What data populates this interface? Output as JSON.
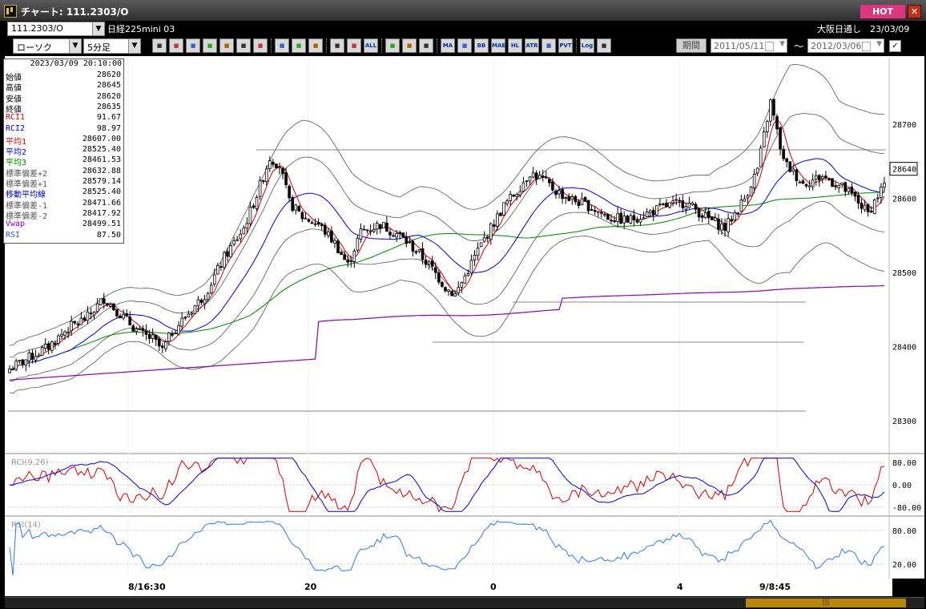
{
  "window": {
    "title": "チャート: 111.2303/O",
    "hot": "HOT",
    "close": "✕"
  },
  "toolbar": {
    "symbol": "111.2303/O",
    "instrument": "日経225mini 03",
    "market_info": "大阪日通し　23/03/09",
    "chart_type": "ローソク",
    "interval": "5分足",
    "period_button": "期間",
    "date_from": "2011/05/11",
    "date_to": "2012/03/06",
    "tilde": "～",
    "icons": [
      "zoom-icon",
      "bar-icon",
      "down-arrow-icon",
      "color-icon",
      "grid-icon",
      "updown-icon",
      "warning-icon",
      "pen-icon",
      "cursor-icon",
      "undo-icon",
      "cross-icon",
      "cross2-icon",
      "all-icon",
      "gear-icon",
      "brush-icon",
      "palette-icon",
      "ma-icon",
      "ma2-icon",
      "bb-icon",
      "mae-icon",
      "hl-icon",
      "atr-icon",
      "bs-icon",
      "pvt-icon",
      "log-icon",
      "split-icon"
    ],
    "icon_labels": {
      "all": "ALL",
      "ma": "MA",
      "bb": "BB",
      "mae": "MAE",
      "hl": "HL",
      "atr": "ATR",
      "pvt": "PVT",
      "log": "Log"
    }
  },
  "info_panel": {
    "timestamp": "2023/03/09  20:10:00",
    "rows": [
      {
        "label": "始値",
        "value": "28620",
        "color": "#000000"
      },
      {
        "label": "高値",
        "value": "28645",
        "color": "#000000"
      },
      {
        "label": "安値",
        "value": "28620",
        "color": "#000000"
      },
      {
        "label": "終値",
        "value": "28635",
        "color": "#000000"
      },
      {
        "label": "RCI1",
        "value": "91.67",
        "color": "#cc0000"
      },
      {
        "label": "RCI2",
        "value": "98.97",
        "color": "#0000cc"
      },
      {
        "label": "平均1",
        "value": "28607.00",
        "color": "#cc0000"
      },
      {
        "label": "平均2",
        "value": "28525.40",
        "color": "#0000cc"
      },
      {
        "label": "平均3",
        "value": "28461.53",
        "color": "#008000"
      },
      {
        "label": "標準偏差+2",
        "value": "28632.88",
        "color": "#555555"
      },
      {
        "label": "標準偏差+1",
        "value": "28579.14",
        "color": "#555555"
      },
      {
        "label": "移動平均線",
        "value": "28525.40",
        "color": "#0000aa"
      },
      {
        "label": "標準偏差-1",
        "value": "28471.66",
        "color": "#555555"
      },
      {
        "label": "標準偏差-2",
        "value": "28417.92",
        "color": "#555555"
      },
      {
        "label": "Vwap",
        "value": "28499.51",
        "color": "#8800aa"
      },
      {
        "label": "RSI",
        "value": "87.50",
        "color": "#3355cc"
      }
    ]
  },
  "chart_data": [
    {
      "type": "candlestick",
      "ylim": [
        28260,
        28790
      ],
      "yticks": [
        28300,
        28400,
        28500,
        28600,
        28700
      ],
      "last_price": 28640,
      "xlabels": [
        "8/16:30",
        "20",
        "0",
        "4",
        "9/8:45"
      ],
      "series": [
        {
          "name": "平均1",
          "color": "#cc0000"
        },
        {
          "name": "平均2",
          "color": "#0000cc"
        },
        {
          "name": "平均3",
          "color": "#008000"
        },
        {
          "name": "Vwap",
          "color": "#8800aa"
        }
      ],
      "close_keypoints": [
        [
          0,
          28370
        ],
        [
          6,
          28385
        ],
        [
          12,
          28400
        ],
        [
          18,
          28425
        ],
        [
          24,
          28440
        ],
        [
          29,
          28465
        ],
        [
          35,
          28440
        ],
        [
          40,
          28418
        ],
        [
          44,
          28410
        ],
        [
          47,
          28395
        ],
        [
          50,
          28420
        ],
        [
          54,
          28440
        ],
        [
          60,
          28470
        ],
        [
          66,
          28520
        ],
        [
          72,
          28560
        ],
        [
          76,
          28605
        ],
        [
          80,
          28655
        ],
        [
          83,
          28645
        ],
        [
          86,
          28595
        ],
        [
          90,
          28575
        ],
        [
          95,
          28565
        ],
        [
          100,
          28540
        ],
        [
          104,
          28510
        ],
        [
          108,
          28555
        ],
        [
          114,
          28565
        ],
        [
          120,
          28550
        ],
        [
          126,
          28525
        ],
        [
          130,
          28505
        ],
        [
          134,
          28480
        ],
        [
          137,
          28470
        ],
        [
          140,
          28495
        ],
        [
          144,
          28530
        ],
        [
          148,
          28560
        ],
        [
          152,
          28590
        ],
        [
          156,
          28610
        ],
        [
          160,
          28635
        ],
        [
          164,
          28625
        ],
        [
          168,
          28610
        ],
        [
          172,
          28600
        ],
        [
          178,
          28590
        ],
        [
          184,
          28575
        ],
        [
          190,
          28570
        ],
        [
          196,
          28580
        ],
        [
          202,
          28590
        ],
        [
          208,
          28595
        ],
        [
          214,
          28575
        ],
        [
          220,
          28560
        ],
        [
          226,
          28600
        ],
        [
          230,
          28640
        ],
        [
          234,
          28730
        ],
        [
          238,
          28650
        ],
        [
          244,
          28620
        ],
        [
          250,
          28630
        ],
        [
          256,
          28615
        ],
        [
          260,
          28600
        ],
        [
          264,
          28580
        ],
        [
          269,
          28620
        ]
      ],
      "sigma_keypoints": [
        [
          0,
          16
        ],
        [
          20,
          20
        ],
        [
          40,
          18
        ],
        [
          60,
          28
        ],
        [
          75,
          45
        ],
        [
          90,
          50
        ],
        [
          105,
          40
        ],
        [
          120,
          28
        ],
        [
          135,
          40
        ],
        [
          150,
          45
        ],
        [
          170,
          35
        ],
        [
          190,
          25
        ],
        [
          215,
          22
        ],
        [
          230,
          50
        ],
        [
          240,
          70
        ],
        [
          255,
          50
        ],
        [
          269,
          53
        ]
      ]
    },
    {
      "type": "line",
      "name": "RCI(9,26)",
      "ylim": [
        -100,
        100
      ],
      "yticks": [
        "80.00",
        "0.00",
        "-80.00"
      ]
    },
    {
      "type": "line",
      "name": "RSI(14)",
      "ylim": [
        0,
        100
      ],
      "yticks": [
        "80.00",
        "20.00"
      ]
    }
  ]
}
